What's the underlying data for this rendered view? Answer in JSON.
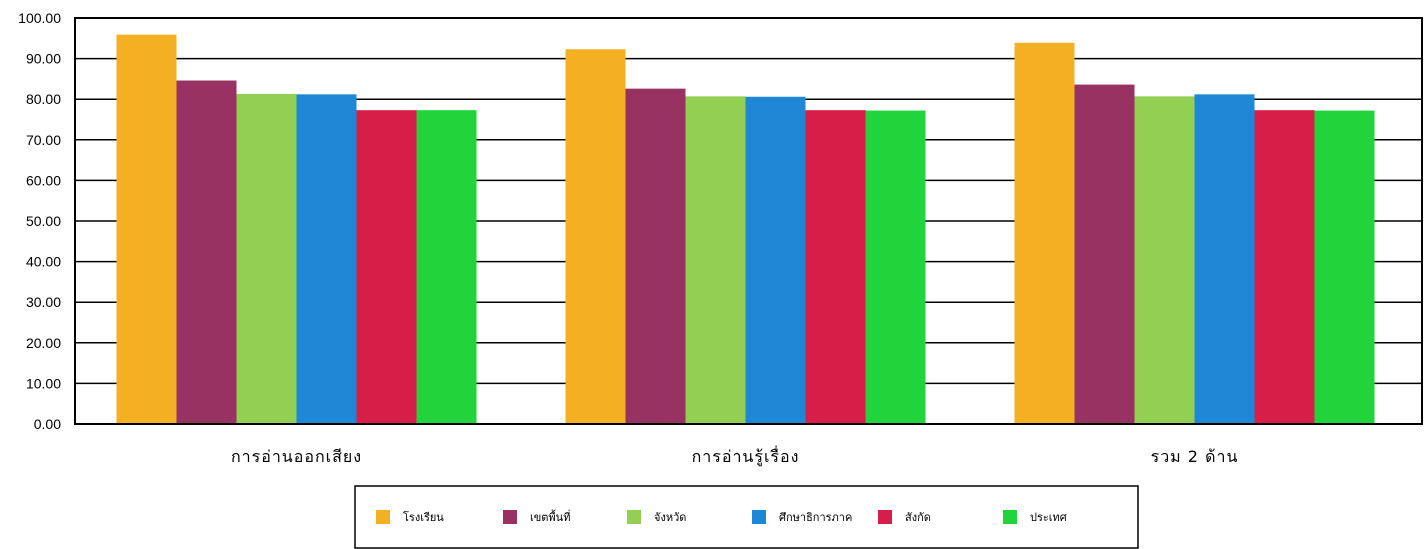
{
  "chart_data": {
    "type": "bar",
    "categories": [
      "การอ่านออกเสียง",
      "การอ่านรู้เรื่อง",
      "รวม 2 ด้าน"
    ],
    "series": [
      {
        "name": "โรงเรียน",
        "color": "#F5AF23",
        "values": [
          95.9,
          92.3,
          93.9
        ]
      },
      {
        "name": "เขตพื้นที่",
        "color": "#983263",
        "values": [
          84.6,
          82.6,
          83.6
        ]
      },
      {
        "name": "จังหวัด",
        "color": "#92CF52",
        "values": [
          81.3,
          80.7,
          80.7
        ]
      },
      {
        "name": "ศึกษาธิการภาค",
        "color": "#1E88D6",
        "values": [
          81.2,
          80.6,
          81.2
        ]
      },
      {
        "name": "สังกัด",
        "color": "#D71E48",
        "values": [
          77.3,
          77.3,
          77.3
        ]
      },
      {
        "name": "ประเทศ",
        "color": "#22D43C",
        "values": [
          77.3,
          77.2,
          77.2
        ]
      }
    ],
    "ylim": [
      0,
      100
    ],
    "yticks": [
      "0.00",
      "10.00",
      "20.00",
      "30.00",
      "40.00",
      "50.00",
      "60.00",
      "70.00",
      "80.00",
      "90.00",
      "100.00"
    ],
    "grid": true,
    "legend_position": "bottom"
  }
}
